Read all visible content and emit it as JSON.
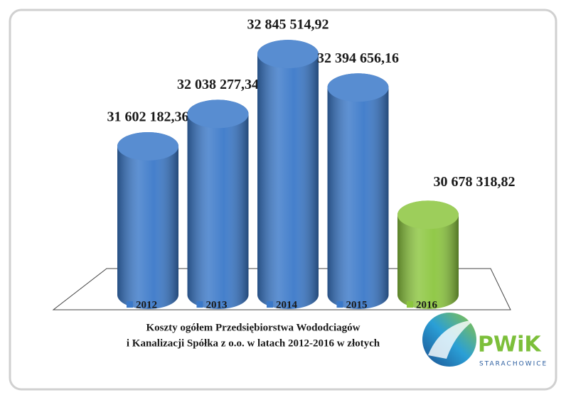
{
  "chart_data": {
    "type": "cylinder",
    "title": [
      "Koszty ogółem Przedsiębiorstwa Wododciagów",
      "i Kanalizacji Spółka z o.o. w latach 2012-2016 w złotych"
    ],
    "categories": [
      "2012",
      "2013",
      "2014",
      "2015",
      "2016"
    ],
    "values": [
      31602182.36,
      32038277.34,
      32845514.92,
      32394656.16,
      30678318.82
    ],
    "value_labels": [
      "31 602 182,36",
      "32 038 277,34",
      "32 845 514,92",
      "32 394 656,16",
      "30 678 318,82"
    ],
    "colors": [
      "#3b79c9",
      "#3b79c9",
      "#3b79c9",
      "#3b79c9",
      "#8cc63f"
    ],
    "ylim": [
      29600000,
      33000000
    ]
  },
  "logo": {
    "name": "PWiK",
    "subtitle": "STARACHOWICE"
  }
}
